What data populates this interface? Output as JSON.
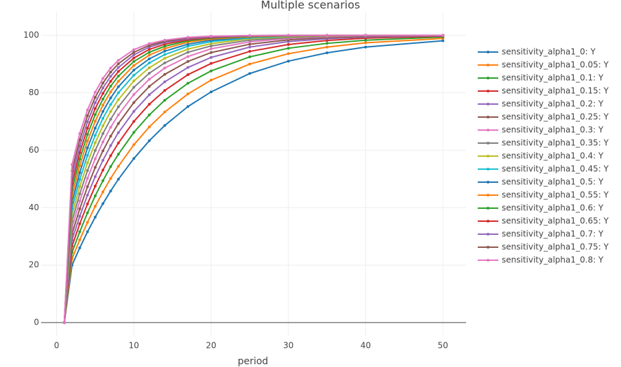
{
  "chart_data": {
    "type": "line",
    "title": "Multiple scenarios",
    "x_label": "period",
    "x": [
      1,
      2,
      3,
      4,
      5,
      6,
      7,
      8,
      10,
      12,
      14,
      17,
      20,
      25,
      30,
      35,
      40,
      50
    ],
    "xlim": [
      -2,
      53
    ],
    "xticks": [
      0,
      10,
      20,
      30,
      40,
      50
    ],
    "ylim": [
      -4.5,
      108
    ],
    "yticks": [
      0,
      20,
      40,
      60,
      80,
      100
    ],
    "grid": true,
    "legend": "right",
    "series": [
      {
        "name": "sensitivity_alpha1_0: Y",
        "color": "#1f77b4",
        "values": [
          0,
          20,
          26.0,
          31.6,
          36.7,
          41.4,
          45.8,
          49.9,
          57.1,
          63.3,
          68.6,
          75.2,
          80.3,
          86.7,
          91.0,
          93.9,
          95.9,
          98.1
        ]
      },
      {
        "name": "sensitivity_alpha1_0.05: Y",
        "color": "#ff7f0e",
        "values": [
          0,
          22.2,
          28.8,
          34.9,
          40.5,
          45.5,
          50.2,
          54.4,
          61.9,
          68.1,
          73.3,
          79.6,
          84.4,
          90.0,
          93.6,
          95.9,
          97.4,
          98.9
        ]
      },
      {
        "name": "sensitivity_alpha1_0.1: Y",
        "color": "#2ca02c",
        "values": [
          0,
          24.4,
          31.6,
          38.2,
          44.1,
          49.4,
          54.3,
          58.6,
          66.2,
          72.3,
          77.4,
          83.3,
          87.6,
          92.5,
          95.5,
          97.2,
          98.3,
          99.4
        ]
      },
      {
        "name": "sensitivity_alpha1_0.15: Y",
        "color": "#d62728",
        "values": [
          0,
          26.6,
          34.4,
          41.3,
          47.5,
          53.1,
          58.1,
          62.5,
          70.0,
          76.0,
          80.8,
          86.3,
          90.2,
          94.4,
          96.8,
          98.2,
          99.0,
          99.7
        ]
      },
      {
        "name": "sensitivity_alpha1_0.2: Y",
        "color": "#9467bd",
        "values": [
          0,
          28.8,
          37.0,
          44.4,
          50.8,
          56.5,
          61.6,
          66.1,
          73.5,
          79.3,
          83.8,
          88.8,
          92.3,
          95.9,
          97.8,
          98.8,
          99.4,
          99.8
        ]
      },
      {
        "name": "sensitivity_alpha1_0.25: Y",
        "color": "#8c564b",
        "values": [
          0,
          30.9,
          39.6,
          47.3,
          54.0,
          59.8,
          64.9,
          69.3,
          76.6,
          82.2,
          86.4,
          90.9,
          94.0,
          96.9,
          98.4,
          99.2,
          99.6,
          99.9
        ]
      },
      {
        "name": "sensitivity_alpha1_0.3: Y",
        "color": "#e377c2",
        "values": [
          0,
          33.1,
          42.3,
          50.2,
          57.0,
          62.9,
          68.0,
          72.3,
          79.4,
          84.7,
          88.6,
          92.6,
          95.3,
          97.7,
          98.9,
          99.5,
          99.8,
          99.9
        ]
      },
      {
        "name": "sensitivity_alpha1_0.35: Y",
        "color": "#7f7f7f",
        "values": [
          0,
          35.3,
          44.8,
          52.9,
          59.9,
          65.8,
          70.8,
          75.1,
          81.9,
          86.8,
          90.4,
          94.1,
          96.3,
          98.3,
          99.2,
          99.7,
          99.8,
          100
        ]
      },
      {
        "name": "sensitivity_alpha1_0.4: Y",
        "color": "#bcbd22",
        "values": [
          0,
          37.5,
          47.3,
          55.6,
          62.6,
          68.5,
          73.5,
          77.6,
          84.1,
          88.7,
          92.0,
          95.2,
          97.1,
          98.8,
          99.5,
          99.8,
          99.9,
          100
        ]
      },
      {
        "name": "sensitivity_alpha1_0.45: Y",
        "color": "#17becf",
        "values": [
          0,
          39.7,
          49.8,
          58.2,
          65.2,
          71.1,
          75.9,
          80.0,
          86.1,
          90.4,
          93.3,
          96.2,
          97.8,
          99.1,
          99.7,
          99.9,
          99.9,
          100
        ]
      },
      {
        "name": "sensitivity_alpha1_0.5: Y",
        "color": "#1f77b4",
        "values": [
          0,
          41.9,
          52.2,
          60.8,
          67.7,
          73.5,
          78.2,
          82.1,
          87.9,
          91.8,
          94.5,
          96.9,
          98.3,
          99.4,
          99.8,
          99.9,
          100,
          100
        ]
      },
      {
        "name": "sensitivity_alpha1_0.55: Y",
        "color": "#ff7f0e",
        "values": [
          0,
          44.1,
          54.6,
          63.2,
          70.1,
          75.7,
          80.3,
          84.0,
          89.5,
          93.1,
          95.4,
          97.6,
          98.7,
          99.5,
          99.8,
          99.9,
          100,
          100
        ]
      },
      {
        "name": "sensitivity_alpha1_0.6: Y",
        "color": "#2ca02c",
        "values": [
          0,
          46.3,
          56.9,
          65.5,
          72.4,
          77.8,
          82.3,
          85.8,
          90.9,
          94.1,
          96.2,
          98.1,
          99.0,
          99.7,
          99.9,
          100,
          100,
          100
        ]
      },
      {
        "name": "sensitivity_alpha1_0.65: Y",
        "color": "#d62728",
        "values": [
          0,
          48.4,
          59.2,
          67.7,
          74.5,
          79.8,
          84.0,
          87.4,
          92.1,
          95.1,
          96.9,
          98.5,
          99.2,
          99.8,
          99.9,
          100,
          100,
          100
        ]
      },
      {
        "name": "sensitivity_alpha1_0.7: Y",
        "color": "#9467bd",
        "values": [
          0,
          50.6,
          61.4,
          69.9,
          76.5,
          81.7,
          85.7,
          88.8,
          93.2,
          95.9,
          97.5,
          98.8,
          99.4,
          99.8,
          100,
          100,
          100,
          100
        ]
      },
      {
        "name": "sensitivity_alpha1_0.75: Y",
        "color": "#8c564b",
        "values": [
          0,
          52.8,
          63.6,
          72.0,
          78.4,
          83.4,
          87.2,
          90.1,
          94.1,
          96.5,
          97.9,
          99.1,
          99.6,
          99.9,
          100,
          100,
          100,
          100
        ]
      },
      {
        "name": "sensitivity_alpha1_0.8: Y",
        "color": "#e377c2",
        "values": [
          0,
          55,
          65.8,
          74.0,
          80.2,
          85.0,
          88.6,
          91.3,
          95.0,
          97.1,
          98.3,
          99.3,
          99.7,
          99.9,
          100,
          100,
          100,
          100
        ]
      }
    ]
  }
}
